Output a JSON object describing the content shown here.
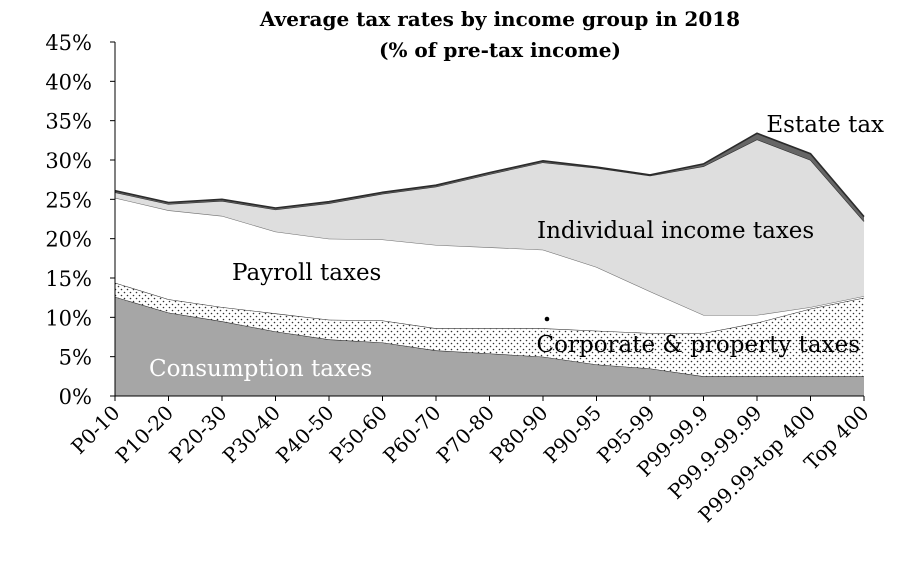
{
  "chart_data": {
    "type": "area",
    "stacked": true,
    "title": "Average tax rates by income group in 2018",
    "subtitle": "(% of pre-tax income)",
    "xlabel": "",
    "ylabel": "",
    "ylim": [
      0,
      45
    ],
    "y_ticks": [
      "0%",
      "5%",
      "10%",
      "15%",
      "20%",
      "25%",
      "30%",
      "35%",
      "40%",
      "45%"
    ],
    "categories": [
      "P0-10",
      "P10-20",
      "P20-30",
      "P30-40",
      "P40-50",
      "P50-60",
      "P60-70",
      "P70-80",
      "P80-90",
      "P90-95",
      "P95-99",
      "P99-99.9",
      "P99.9-99.99",
      "P99.99-top 400",
      "Top 400"
    ],
    "grid": false,
    "legend": "none",
    "series": [
      {
        "name": "Consumption taxes",
        "color": "#a6a6a6",
        "values": [
          12.6,
          10.6,
          9.5,
          8.2,
          7.2,
          6.8,
          5.8,
          5.4,
          5.0,
          4.0,
          3.5,
          2.5,
          2.5,
          2.5,
          2.5
        ]
      },
      {
        "name": "Corporate & property taxes",
        "color": "#ffffff",
        "pattern": "dots",
        "values": [
          1.8,
          1.7,
          1.8,
          2.3,
          2.5,
          2.8,
          2.8,
          3.2,
          3.6,
          4.3,
          4.5,
          5.5,
          6.8,
          8.6,
          10.0
        ]
      },
      {
        "name": "Payroll taxes",
        "color": "#ffffff",
        "values": [
          10.8,
          11.3,
          11.6,
          10.4,
          10.3,
          10.3,
          10.6,
          10.3,
          10.0,
          8.1,
          5.3,
          2.3,
          1.0,
          0.2,
          0.2
        ]
      },
      {
        "name": "Individual income taxes",
        "color": "#dedede",
        "values": [
          0.7,
          0.8,
          1.9,
          2.8,
          4.5,
          5.8,
          7.4,
          9.3,
          11.1,
          12.6,
          14.7,
          18.9,
          22.3,
          18.7,
          9.5
        ]
      },
      {
        "name": "Estate tax",
        "color": "#666666",
        "values": [
          0.2,
          0.2,
          0.2,
          0.2,
          0.2,
          0.2,
          0.2,
          0.2,
          0.2,
          0.1,
          0.1,
          0.3,
          0.8,
          0.8,
          0.6
        ]
      }
    ],
    "annotations": [
      "Estate tax",
      "Individual income taxes",
      "Payroll taxes",
      "Corporate & property taxes",
      "Consumption taxes"
    ]
  }
}
